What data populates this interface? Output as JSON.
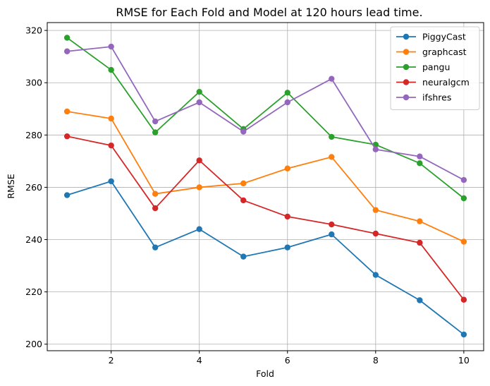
{
  "chart_data": {
    "type": "line",
    "title": "RMSE for Each Fold and Model at 120 hours lead time.",
    "xlabel": "Fold",
    "ylabel": "RMSE",
    "x": [
      1,
      2,
      3,
      4,
      5,
      6,
      7,
      8,
      9,
      10
    ],
    "xlim": [
      0.55,
      10.45
    ],
    "ylim": [
      197.5,
      323
    ],
    "xticks": [
      2,
      4,
      6,
      8,
      10
    ],
    "yticks": [
      200,
      220,
      240,
      260,
      280,
      300,
      320
    ],
    "grid": true,
    "legend_position": "top-right",
    "series": [
      {
        "name": "PiggyCast",
        "color": "#1f77b4",
        "values": [
          257.0,
          262.3,
          237.0,
          244.0,
          233.5,
          237.0,
          242.0,
          226.5,
          216.8,
          203.7
        ]
      },
      {
        "name": "graphcast",
        "color": "#ff7f0e",
        "values": [
          289.0,
          286.3,
          257.5,
          260.0,
          261.5,
          267.2,
          271.6,
          251.3,
          247.0,
          239.2
        ]
      },
      {
        "name": "pangu",
        "color": "#2ca02c",
        "values": [
          317.2,
          304.9,
          281.0,
          296.5,
          282.3,
          296.2,
          279.3,
          276.3,
          269.2,
          255.8
        ]
      },
      {
        "name": "neuralgcm",
        "color": "#d62728",
        "values": [
          279.5,
          276.0,
          252.0,
          270.3,
          255.0,
          248.8,
          245.8,
          242.3,
          238.8,
          217.0
        ]
      },
      {
        "name": "ifshres",
        "color": "#9467bd",
        "values": [
          312.0,
          313.8,
          285.2,
          292.5,
          281.3,
          292.5,
          301.5,
          274.5,
          271.8,
          262.8
        ]
      }
    ]
  }
}
